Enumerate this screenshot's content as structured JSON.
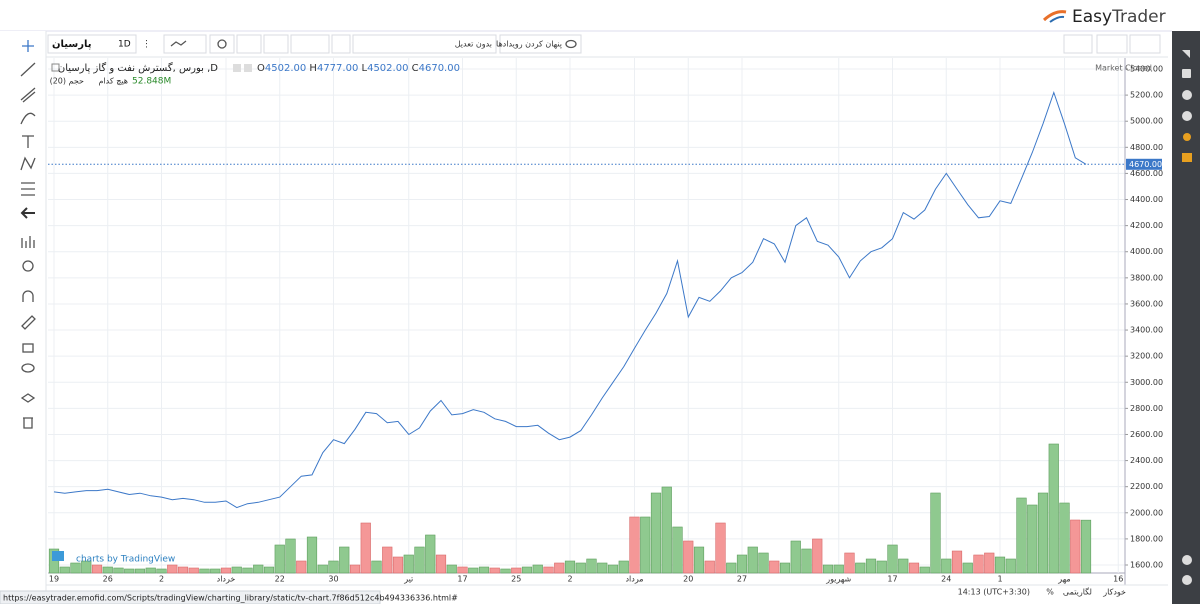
{
  "header": {
    "logo_easy": "Easy",
    "logo_trader": "Trader"
  },
  "toolbar": {
    "symbol": "پارسیان",
    "interval": "1D",
    "adjust": "بدون تعدیل",
    "hide_events": "پنهان کردن رویدادها"
  },
  "legend": {
    "title": "بورس ,گسترش نفت و گاز پارسیان ,D",
    "o_key": "O",
    "open": "4502.00",
    "h_key": "H",
    "high": "4777.00",
    "l_key": "L",
    "low": "4502.00",
    "c_key": "C",
    "close": "4670.00",
    "volume_title": "حجم (20)",
    "volume_sub": "هیچ کدام"
  },
  "market_status": "Market Closed",
  "watermark": "charts by TradingView",
  "status_bar": {
    "time": "14:13 (UTC+3:30)",
    "percent": "%",
    "log": "لگاریتمی",
    "auto": "خودکار"
  },
  "url": "https://easytrader.emofid.com/Scripts/tradingView/charting_library/static/tv-chart.7f86d512c4b494336336.html#",
  "chart_data": {
    "type": "line",
    "categories": [
      "19",
      null,
      null,
      null,
      null,
      "26",
      null,
      null,
      null,
      null,
      "2",
      null,
      null,
      null,
      null,
      null,
      "خرداد",
      null,
      null,
      null,
      null,
      "22",
      null,
      null,
      null,
      null,
      "30",
      null,
      null,
      null,
      null,
      null,
      null,
      "تیر",
      null,
      null,
      null,
      null,
      "17",
      null,
      null,
      null,
      null,
      "25",
      null,
      null,
      null,
      null,
      "2",
      null,
      null,
      null,
      null,
      null,
      "مرداد",
      null,
      null,
      null,
      null,
      "20",
      null,
      null,
      null,
      null,
      "27",
      null,
      null,
      null,
      null,
      null,
      null,
      null,
      null,
      "شهریور",
      null,
      null,
      null,
      null,
      "17",
      null,
      null,
      null,
      null,
      "24",
      null,
      null,
      null,
      null,
      "1",
      null,
      null,
      null,
      null,
      null,
      "مهر",
      null,
      null,
      null,
      null,
      "16"
    ],
    "series": [
      {
        "name": "پارسیان",
        "color": "#3c78c8",
        "values": [
          2160,
          2150,
          2160,
          2170,
          2170,
          2180,
          2160,
          2140,
          2150,
          2130,
          2120,
          2100,
          2110,
          2100,
          2080,
          2080,
          2090,
          2040,
          2070,
          2080,
          2100,
          2120,
          2200,
          2280,
          2290,
          2460,
          2560,
          2530,
          2640,
          2770,
          2760,
          2690,
          2700,
          2600,
          2650,
          2780,
          2860,
          2750,
          2760,
          2790,
          2770,
          2720,
          2700,
          2660,
          2660,
          2670,
          2610,
          2560,
          2580,
          2630,
          2750,
          2880,
          3000,
          3120,
          3260,
          3400,
          3530,
          3680,
          3930,
          3500,
          3650,
          3620,
          3700,
          3800,
          3840,
          3920,
          4100,
          4060,
          3920,
          4200,
          4260,
          4080,
          4050,
          3960,
          3800,
          3930,
          4000,
          4030,
          4100,
          4300,
          4250,
          4320,
          4480,
          4600,
          4480,
          4360,
          4260,
          4270,
          4390,
          4370,
          4560,
          4760,
          4980,
          5220,
          4980,
          4720,
          4670,
          null,
          null,
          null
        ]
      },
      {
        "name": "حجم (20)",
        "axis": "y2",
        "up_color": "#8fc98f",
        "down_color": "#f49797",
        "values": [
          24,
          6,
          10,
          12,
          8,
          6,
          5,
          4,
          4,
          5,
          4,
          8,
          6,
          5,
          4,
          4,
          5,
          6,
          5,
          8,
          6,
          28,
          34,
          12,
          36,
          8,
          12,
          26,
          8,
          50,
          12,
          26,
          16,
          18,
          26,
          38,
          18,
          8,
          6,
          5,
          6,
          5,
          4,
          5,
          6,
          8,
          6,
          10,
          12,
          10,
          14,
          10,
          8,
          12,
          56,
          56,
          80,
          86,
          46,
          32,
          26,
          12,
          50,
          10,
          18,
          26,
          20,
          12,
          10,
          32,
          24,
          34,
          8,
          8,
          20,
          10,
          14,
          12,
          28,
          14,
          10,
          6,
          80,
          14,
          22,
          10,
          18,
          20,
          16,
          14,
          75,
          68,
          80,
          129,
          70,
          53,
          52.848,
          null,
          null,
          null
        ],
        "up": [
          1,
          1,
          1,
          1,
          0,
          1,
          1,
          1,
          1,
          1,
          1,
          0,
          0,
          0,
          1,
          1,
          0,
          1,
          1,
          1,
          1,
          1,
          1,
          0,
          1,
          1,
          1,
          1,
          0,
          0,
          1,
          0,
          0,
          1,
          1,
          1,
          0,
          1,
          0,
          1,
          1,
          0,
          1,
          0,
          1,
          1,
          0,
          0,
          1,
          1,
          1,
          1,
          1,
          1,
          0,
          1,
          1,
          1,
          1,
          0,
          1,
          0,
          0,
          1,
          1,
          1,
          1,
          0,
          1,
          1,
          1,
          0,
          1,
          1,
          0,
          1,
          1,
          1,
          1,
          1,
          0,
          1,
          1,
          1,
          0,
          1,
          0,
          0,
          1,
          1,
          1,
          1,
          1,
          1,
          1,
          0,
          1,
          null,
          null,
          null
        ],
        "value_labels": [
          null,
          null,
          null,
          null,
          null,
          null,
          null,
          null,
          null,
          null,
          null,
          null,
          null,
          null,
          null,
          null,
          null,
          null,
          null,
          null,
          null,
          null,
          null,
          null,
          null,
          null,
          null,
          null,
          null,
          null,
          null,
          null,
          null,
          null,
          null,
          null,
          null,
          null,
          null,
          null,
          null,
          null,
          null,
          null,
          null,
          null,
          null,
          null,
          null,
          null,
          null,
          null,
          null,
          null,
          null,
          null,
          null,
          null,
          null,
          null,
          null,
          null,
          null,
          null,
          null,
          null,
          null,
          null,
          null,
          null,
          null,
          null,
          null,
          null,
          null,
          null,
          null,
          null,
          null,
          null,
          null,
          null,
          null,
          null,
          null,
          null,
          null,
          null,
          null,
          null,
          null,
          null,
          null,
          null,
          null,
          null,
          "52.848M",
          null,
          null,
          null
        ]
      }
    ],
    "ylim": [
      1600,
      5400
    ],
    "yticks": [
      {
        "value": 1600,
        "label": "1600.00"
      },
      {
        "value": 1800,
        "label": "1800.00"
      },
      {
        "value": 2000,
        "label": "2000.00"
      },
      {
        "value": 2200,
        "label": "2200.00"
      },
      {
        "value": 2400,
        "label": "2400.00"
      },
      {
        "value": 2600,
        "label": "2600.00"
      },
      {
        "value": 2800,
        "label": "2800.00"
      },
      {
        "value": 3000,
        "label": "3000.00"
      },
      {
        "value": 3200,
        "label": "3200.00"
      },
      {
        "value": 3400,
        "label": "3400.00"
      },
      {
        "value": 3600,
        "label": "3600.00"
      },
      {
        "value": 3800,
        "label": "3800.00"
      },
      {
        "value": 4000,
        "label": "4000.00"
      },
      {
        "value": 4200,
        "label": "4200.00"
      },
      {
        "value": 4400,
        "label": "4400.00"
      },
      {
        "value": 4600,
        "label": "4600.00"
      },
      {
        "value": 4800,
        "label": "4800.00"
      },
      {
        "value": 5000,
        "label": "5000.00"
      },
      {
        "value": 5200,
        "label": "5200.00"
      },
      {
        "value": 5400,
        "label": "5400.00"
      }
    ],
    "y2lim": [
      0,
      504
    ],
    "last_price": {
      "value": 4670,
      "label": "4670.00"
    },
    "grid": true
  }
}
